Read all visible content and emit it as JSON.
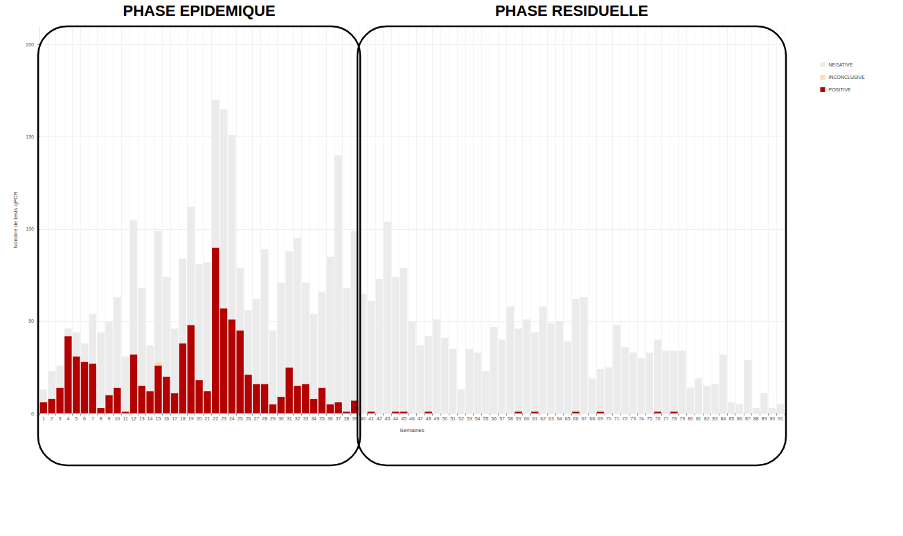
{
  "chart_data": {
    "type": "bar",
    "stacked": true,
    "x_label": "Semaines",
    "y_label": "Nombre de tests qPCR",
    "categories": [
      "1",
      "2",
      "3",
      "4",
      "5",
      "6",
      "7",
      "8",
      "9",
      "10",
      "11",
      "12",
      "13",
      "14",
      "15",
      "16",
      "17",
      "18",
      "19",
      "20",
      "21",
      "22",
      "23",
      "24",
      "25",
      "26",
      "27",
      "28",
      "29",
      "30",
      "31",
      "32",
      "33",
      "34",
      "35",
      "36",
      "37",
      "38",
      "39",
      "40",
      "41",
      "42",
      "43",
      "44",
      "45",
      "46",
      "47",
      "48",
      "49",
      "50",
      "51",
      "52",
      "53",
      "54",
      "55",
      "56",
      "57",
      "58",
      "59",
      "60",
      "61",
      "62",
      "63",
      "64",
      "65",
      "66",
      "67",
      "68",
      "69",
      "70",
      "71",
      "72",
      "73",
      "74",
      "75",
      "76",
      "77",
      "78",
      "79",
      "80",
      "81",
      "82",
      "83",
      "84",
      "85",
      "86",
      "87",
      "88",
      "89",
      "90",
      "91"
    ],
    "series": [
      {
        "name": "NEGATIVE",
        "color": "#ebebeb",
        "values": [
          7,
          15,
          12,
          4,
          13,
          10,
          27,
          41,
          40,
          49,
          30,
          73,
          53,
          25,
          71,
          54,
          35,
          46,
          64,
          63,
          70,
          80,
          108,
          100,
          34,
          35,
          46,
          73,
          40,
          62,
          63,
          80,
          55,
          46,
          52,
          80,
          134,
          67,
          92,
          65,
          60,
          73,
          104,
          73,
          78,
          50,
          37,
          41,
          51,
          41,
          35,
          13,
          35,
          33,
          23,
          47,
          40,
          58,
          45,
          51,
          43,
          58,
          49,
          50,
          39,
          61,
          63,
          19,
          23,
          25,
          48,
          36,
          33,
          30,
          33,
          39,
          34,
          33,
          34,
          14,
          19,
          15,
          16,
          32,
          6,
          5,
          29,
          3,
          11,
          3,
          5
        ]
      },
      {
        "name": "INCONCLUSIVE",
        "color": "#fdd9b5",
        "values": [
          0,
          0,
          0,
          0,
          0,
          0,
          0,
          0,
          0,
          0,
          0,
          0,
          0,
          0,
          2,
          0,
          0,
          0,
          0,
          0,
          0,
          0,
          0,
          0,
          0,
          0,
          0,
          0,
          0,
          0,
          0,
          0,
          0,
          0,
          0,
          0,
          0,
          0,
          0,
          0,
          0,
          0,
          0,
          0,
          0,
          0,
          0,
          0,
          0,
          0,
          0,
          0,
          0,
          0,
          0,
          0,
          0,
          0,
          0,
          0,
          0,
          0,
          0,
          0,
          0,
          0,
          0,
          0,
          0,
          0,
          0,
          0,
          0,
          0,
          0,
          0,
          0,
          0,
          0,
          0,
          0,
          0,
          0,
          0,
          0,
          0,
          0,
          0,
          0,
          0,
          0
        ]
      },
      {
        "name": "POSITIVE",
        "color": "#b30000",
        "values": [
          6,
          8,
          14,
          42,
          31,
          28,
          27,
          3,
          10,
          14,
          1,
          32,
          15,
          12,
          26,
          20,
          11,
          38,
          48,
          18,
          12,
          90,
          57,
          51,
          45,
          21,
          16,
          16,
          5,
          9,
          25,
          15,
          16,
          8,
          14,
          5,
          6,
          1,
          7,
          0,
          1,
          0,
          0,
          1,
          1,
          0,
          0,
          1,
          0,
          0,
          0,
          0,
          0,
          0,
          0,
          0,
          0,
          0,
          1,
          0,
          1,
          0,
          0,
          0,
          0,
          1,
          0,
          0,
          1,
          0,
          0,
          0,
          0,
          0,
          0,
          1,
          0,
          1,
          0,
          0,
          0,
          0,
          0,
          0,
          0,
          0,
          0,
          0,
          0,
          0,
          0
        ]
      }
    ],
    "ylim": [
      0,
      210
    ],
    "yticks": [
      0,
      50,
      100,
      150,
      200
    ],
    "grid": true,
    "legend": "right",
    "annotations": [
      {
        "text": "PHASE EPIDEMIQUE",
        "x_from": "1",
        "x_to": "39"
      },
      {
        "text": "PHASE RESIDUELLE",
        "x_from": "40",
        "x_to": "91"
      }
    ]
  }
}
